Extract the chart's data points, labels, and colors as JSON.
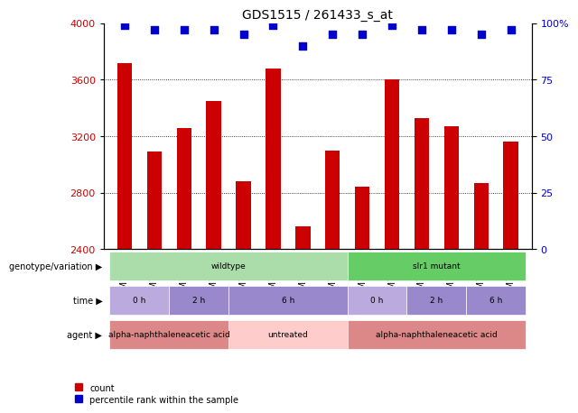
{
  "title": "GDS1515 / 261433_s_at",
  "samples": [
    "GSM75508",
    "GSM75512",
    "GSM75509",
    "GSM75513",
    "GSM75511",
    "GSM75515",
    "GSM75510",
    "GSM75514",
    "GSM75516",
    "GSM75519",
    "GSM75517",
    "GSM75520",
    "GSM75518",
    "GSM75521"
  ],
  "counts": [
    3720,
    3090,
    3260,
    3450,
    2880,
    3680,
    2560,
    3100,
    2840,
    3600,
    3330,
    3270,
    2870,
    3160
  ],
  "percentiles": [
    99,
    97,
    97,
    97,
    95,
    99,
    90,
    95,
    95,
    99,
    97,
    97,
    95,
    97
  ],
  "ylim_left": [
    2400,
    4000
  ],
  "ylim_right": [
    0,
    100
  ],
  "yticks_left": [
    2400,
    2800,
    3200,
    3600,
    4000
  ],
  "yticks_right": [
    0,
    25,
    50,
    75,
    100
  ],
  "bar_color": "#cc0000",
  "dot_color": "#0000cc",
  "genotype_groups": [
    {
      "label": "wildtype",
      "start": 0,
      "end": 8,
      "color": "#aaddaa"
    },
    {
      "label": "slr1 mutant",
      "start": 8,
      "end": 14,
      "color": "#66cc66"
    }
  ],
  "time_groups": [
    {
      "label": "0 h",
      "start": 0,
      "end": 2,
      "color": "#bbaadd"
    },
    {
      "label": "2 h",
      "start": 2,
      "end": 4,
      "color": "#9988cc"
    },
    {
      "label": "6 h",
      "start": 4,
      "end": 8,
      "color": "#9988cc"
    },
    {
      "label": "0 h",
      "start": 8,
      "end": 10,
      "color": "#bbaadd"
    },
    {
      "label": "2 h",
      "start": 10,
      "end": 12,
      "color": "#9988cc"
    },
    {
      "label": "6 h",
      "start": 12,
      "end": 14,
      "color": "#9988cc"
    }
  ],
  "agent_groups": [
    {
      "label": "alpha-naphthaleneacetic acid",
      "start": 0,
      "end": 4,
      "color": "#dd8888"
    },
    {
      "label": "untreated",
      "start": 4,
      "end": 8,
      "color": "#ffcccc"
    },
    {
      "label": "alpha-naphthaleneacetic acid",
      "start": 8,
      "end": 14,
      "color": "#dd8888"
    }
  ],
  "row_labels": [
    "genotype/variation",
    "time",
    "agent"
  ],
  "legend_count_color": "#cc0000",
  "legend_dot_color": "#0000cc",
  "bg_color": "#ffffff",
  "axis_label_color_left": "#cc0000",
  "axis_label_color_right": "#0000cc"
}
